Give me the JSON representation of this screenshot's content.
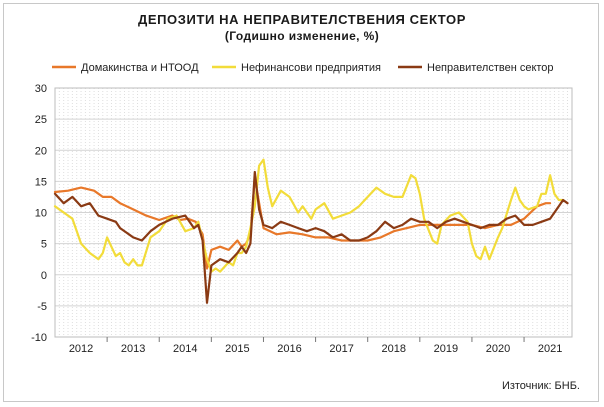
{
  "chart_data": {
    "type": "line",
    "title": "ДЕПОЗИТИ НА НЕПРАВИТЕЛСТВЕНИЯ СЕКТОР",
    "subtitle": "(Годишно изменение, %)",
    "source": "Източник: БНБ.",
    "ylim": [
      -10,
      30
    ],
    "yticks": [
      -10,
      -5,
      0,
      5,
      10,
      15,
      20,
      25,
      30
    ],
    "x_start": 2012.0,
    "x_end": 2021.0,
    "year_labels": [
      "2012",
      "2013",
      "2014",
      "2015",
      "2016",
      "2017",
      "2018",
      "2019",
      "2020",
      "2021"
    ],
    "grid": true,
    "legend_position": "top",
    "series": [
      {
        "name": "Домакинства и НТООД",
        "color": "#e8782a",
        "points": [
          [
            2012.0,
            13.3
          ],
          [
            2012.25,
            13.5
          ],
          [
            2012.5,
            14.0
          ],
          [
            2012.75,
            13.5
          ],
          [
            2012.917,
            12.5
          ],
          [
            2013.083,
            12.5
          ],
          [
            2013.25,
            11.5
          ],
          [
            2013.5,
            10.5
          ],
          [
            2013.75,
            9.5
          ],
          [
            2014.0,
            8.8
          ],
          [
            2014.25,
            9.5
          ],
          [
            2014.4,
            8.8
          ],
          [
            2014.55,
            9.0
          ],
          [
            2014.7,
            8.5
          ],
          [
            2014.833,
            6.5
          ],
          [
            2014.917,
            1.0
          ],
          [
            2015.0,
            4.0
          ],
          [
            2015.167,
            4.5
          ],
          [
            2015.333,
            4.0
          ],
          [
            2015.5,
            5.5
          ],
          [
            2015.583,
            4.5
          ],
          [
            2015.667,
            5.0
          ],
          [
            2015.75,
            6.5
          ],
          [
            2015.833,
            15.5
          ],
          [
            2016.0,
            7.5
          ],
          [
            2016.25,
            6.5
          ],
          [
            2016.5,
            6.8
          ],
          [
            2016.75,
            6.5
          ],
          [
            2017.0,
            6.0
          ],
          [
            2017.25,
            6.0
          ],
          [
            2017.5,
            5.5
          ],
          [
            2017.75,
            5.5
          ],
          [
            2018.0,
            5.5
          ],
          [
            2018.25,
            6.0
          ],
          [
            2018.5,
            7.0
          ],
          [
            2018.75,
            7.5
          ],
          [
            2019.0,
            8.0
          ],
          [
            2019.25,
            8.0
          ],
          [
            2019.5,
            8.0
          ],
          [
            2019.75,
            8.0
          ],
          [
            2020.0,
            8.0
          ],
          [
            2020.25,
            7.5
          ],
          [
            2020.5,
            8.0
          ],
          [
            2020.75,
            8.0
          ],
          [
            2021.0,
            9.0
          ],
          [
            2021.25,
            11.0
          ],
          [
            2021.417,
            11.5
          ],
          [
            2021.5,
            11.5
          ]
        ]
      },
      {
        "name": "Нефинансови предприятия",
        "color": "#f2dc3a",
        "points": [
          [
            2012.0,
            11.0
          ],
          [
            2012.167,
            10.0
          ],
          [
            2012.333,
            9.0
          ],
          [
            2012.5,
            5.0
          ],
          [
            2012.667,
            3.5
          ],
          [
            2012.833,
            2.5
          ],
          [
            2012.917,
            3.5
          ],
          [
            2013.0,
            6.0
          ],
          [
            2013.083,
            4.5
          ],
          [
            2013.167,
            3.0
          ],
          [
            2013.25,
            3.5
          ],
          [
            2013.333,
            2.0
          ],
          [
            2013.417,
            1.5
          ],
          [
            2013.5,
            2.5
          ],
          [
            2013.583,
            1.5
          ],
          [
            2013.667,
            1.5
          ],
          [
            2013.833,
            6.0
          ],
          [
            2014.0,
            7.0
          ],
          [
            2014.167,
            9.0
          ],
          [
            2014.333,
            9.5
          ],
          [
            2014.5,
            7.0
          ],
          [
            2014.667,
            7.5
          ],
          [
            2014.75,
            8.5
          ],
          [
            2014.833,
            5.5
          ],
          [
            2014.917,
            2.5
          ],
          [
            2015.0,
            0.5
          ],
          [
            2015.083,
            1.0
          ],
          [
            2015.167,
            0.5
          ],
          [
            2015.333,
            2.0
          ],
          [
            2015.417,
            1.5
          ],
          [
            2015.5,
            3.5
          ],
          [
            2015.583,
            3.5
          ],
          [
            2015.667,
            4.5
          ],
          [
            2015.75,
            7.5
          ],
          [
            2015.833,
            11.0
          ],
          [
            2015.917,
            17.5
          ],
          [
            2016.0,
            18.5
          ],
          [
            2016.083,
            14.0
          ],
          [
            2016.167,
            11.0
          ],
          [
            2016.333,
            13.5
          ],
          [
            2016.5,
            12.5
          ],
          [
            2016.667,
            10.0
          ],
          [
            2016.75,
            11.0
          ],
          [
            2016.917,
            9.0
          ],
          [
            2017.0,
            10.5
          ],
          [
            2017.167,
            11.5
          ],
          [
            2017.333,
            9.0
          ],
          [
            2017.5,
            9.5
          ],
          [
            2017.667,
            10.0
          ],
          [
            2017.833,
            11.0
          ],
          [
            2018.0,
            12.5
          ],
          [
            2018.167,
            14.0
          ],
          [
            2018.333,
            13.0
          ],
          [
            2018.5,
            12.5
          ],
          [
            2018.667,
            12.5
          ],
          [
            2018.833,
            16.0
          ],
          [
            2018.917,
            15.5
          ],
          [
            2019.0,
            13.0
          ],
          [
            2019.083,
            9.0
          ],
          [
            2019.25,
            5.5
          ],
          [
            2019.333,
            5.0
          ],
          [
            2019.417,
            8.0
          ],
          [
            2019.583,
            9.5
          ],
          [
            2019.75,
            10.0
          ],
          [
            2019.917,
            8.5
          ],
          [
            2020.0,
            5.0
          ],
          [
            2020.083,
            3.0
          ],
          [
            2020.167,
            2.5
          ],
          [
            2020.25,
            4.5
          ],
          [
            2020.333,
            2.5
          ],
          [
            2020.5,
            6.0
          ],
          [
            2020.583,
            7.5
          ],
          [
            2020.75,
            12.0
          ],
          [
            2020.833,
            14.0
          ],
          [
            2020.917,
            12.0
          ],
          [
            2021.0,
            11.0
          ],
          [
            2021.083,
            10.5
          ],
          [
            2021.25,
            11.0
          ],
          [
            2021.333,
            13.0
          ],
          [
            2021.417,
            13.0
          ],
          [
            2021.5,
            16.0
          ],
          [
            2021.583,
            13.0
          ],
          [
            2021.667,
            12.0
          ],
          [
            2021.75,
            12.0
          ]
        ]
      },
      {
        "name": "Неправителствен сектор",
        "color": "#8a3a14",
        "points": [
          [
            2012.0,
            13.0
          ],
          [
            2012.167,
            11.5
          ],
          [
            2012.333,
            12.5
          ],
          [
            2012.5,
            11.0
          ],
          [
            2012.667,
            11.5
          ],
          [
            2012.833,
            9.5
          ],
          [
            2013.0,
            9.0
          ],
          [
            2013.167,
            8.5
          ],
          [
            2013.25,
            7.5
          ],
          [
            2013.5,
            6.0
          ],
          [
            2013.667,
            5.5
          ],
          [
            2013.833,
            7.0
          ],
          [
            2014.0,
            8.0
          ],
          [
            2014.25,
            9.0
          ],
          [
            2014.5,
            9.5
          ],
          [
            2014.667,
            7.5
          ],
          [
            2014.75,
            8.0
          ],
          [
            2014.833,
            5.5
          ],
          [
            2014.917,
            -4.5
          ],
          [
            2015.0,
            1.5
          ],
          [
            2015.167,
            2.5
          ],
          [
            2015.333,
            2.0
          ],
          [
            2015.5,
            3.5
          ],
          [
            2015.583,
            4.5
          ],
          [
            2015.667,
            3.5
          ],
          [
            2015.75,
            5.0
          ],
          [
            2015.833,
            16.5
          ],
          [
            2015.917,
            10.5
          ],
          [
            2016.0,
            8.0
          ],
          [
            2016.167,
            7.5
          ],
          [
            2016.333,
            8.5
          ],
          [
            2016.5,
            8.0
          ],
          [
            2016.667,
            7.5
          ],
          [
            2016.833,
            7.0
          ],
          [
            2017.0,
            7.5
          ],
          [
            2017.167,
            7.0
          ],
          [
            2017.333,
            6.0
          ],
          [
            2017.5,
            6.5
          ],
          [
            2017.667,
            5.5
          ],
          [
            2017.833,
            5.5
          ],
          [
            2018.0,
            6.0
          ],
          [
            2018.167,
            7.0
          ],
          [
            2018.333,
            8.5
          ],
          [
            2018.5,
            7.5
          ],
          [
            2018.667,
            8.0
          ],
          [
            2018.833,
            9.0
          ],
          [
            2019.0,
            8.5
          ],
          [
            2019.167,
            8.5
          ],
          [
            2019.333,
            7.5
          ],
          [
            2019.5,
            8.5
          ],
          [
            2019.667,
            9.0
          ],
          [
            2019.833,
            8.5
          ],
          [
            2020.0,
            8.0
          ],
          [
            2020.167,
            7.5
          ],
          [
            2020.333,
            8.0
          ],
          [
            2020.5,
            8.0
          ],
          [
            2020.667,
            9.0
          ],
          [
            2020.833,
            9.5
          ],
          [
            2021.0,
            8.0
          ],
          [
            2021.167,
            8.0
          ],
          [
            2021.333,
            8.5
          ],
          [
            2021.5,
            9.0
          ],
          [
            2021.667,
            11.0
          ],
          [
            2021.75,
            12.0
          ],
          [
            2021.833,
            11.5
          ]
        ]
      }
    ]
  }
}
